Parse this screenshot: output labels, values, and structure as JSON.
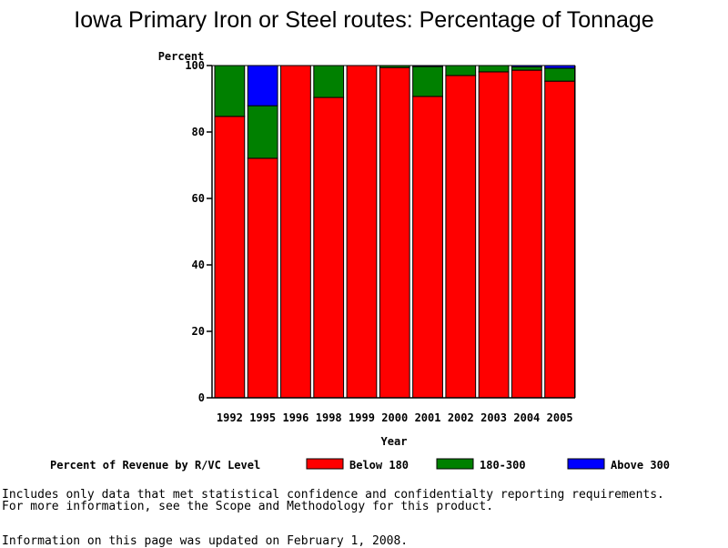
{
  "chart_data": {
    "type": "bar",
    "stacked": true,
    "title": "Iowa Primary Iron or Steel routes: Percentage of Tonnage",
    "xlabel": "Year",
    "ylabel": "Percent",
    "ylim": [
      0,
      100
    ],
    "yticks": [
      0,
      20,
      40,
      60,
      80,
      100
    ],
    "categories": [
      "1992",
      "1995",
      "1996",
      "1998",
      "1999",
      "2000",
      "2001",
      "2002",
      "2003",
      "2004",
      "2005"
    ],
    "series": [
      {
        "name": "Below 180",
        "color": "#ff0000",
        "values": [
          84.7,
          72.1,
          100,
          90.4,
          100,
          99.4,
          90.7,
          97.0,
          98.1,
          98.6,
          95.3
        ]
      },
      {
        "name": "180-300",
        "color": "#008000",
        "values": [
          15.3,
          15.8,
          0,
          9.6,
          0,
          0.6,
          9.0,
          3.0,
          1.9,
          1.0,
          3.9
        ]
      },
      {
        "name": "Above 300",
        "color": "#0000ff",
        "values": [
          0,
          12.1,
          0,
          0,
          0,
          0,
          0.3,
          0,
          0,
          0.4,
          0.8
        ]
      }
    ],
    "legend_title": "Percent of Revenue by R/VC Level",
    "legend_position": "bottom"
  },
  "footer": {
    "note1": "Includes only data that met statistical confidence and confidentialty reporting requirements.",
    "note2": "For more information, see the Scope and Methodology for this product.",
    "updated": "Information on this page was updated on February 1, 2008."
  }
}
